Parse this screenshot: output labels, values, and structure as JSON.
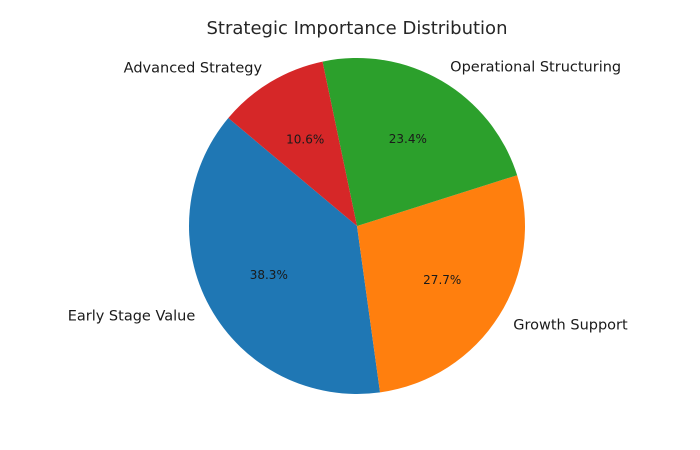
{
  "chart_data": {
    "type": "pie",
    "title": "Strategic Importance Distribution",
    "categories": [
      "Early Stage Value",
      "Growth Support",
      "Operational Structuring",
      "Advanced Strategy"
    ],
    "values": [
      38.3,
      27.7,
      23.4,
      10.6
    ],
    "value_labels": [
      "38.3%",
      "27.7%",
      "23.4%",
      "10.6%"
    ],
    "colors": [
      "#1f77b4",
      "#ff7f0e",
      "#2ca02c",
      "#d62728"
    ],
    "start_angle_deg": 140,
    "counterclock": true,
    "legend": false
  }
}
